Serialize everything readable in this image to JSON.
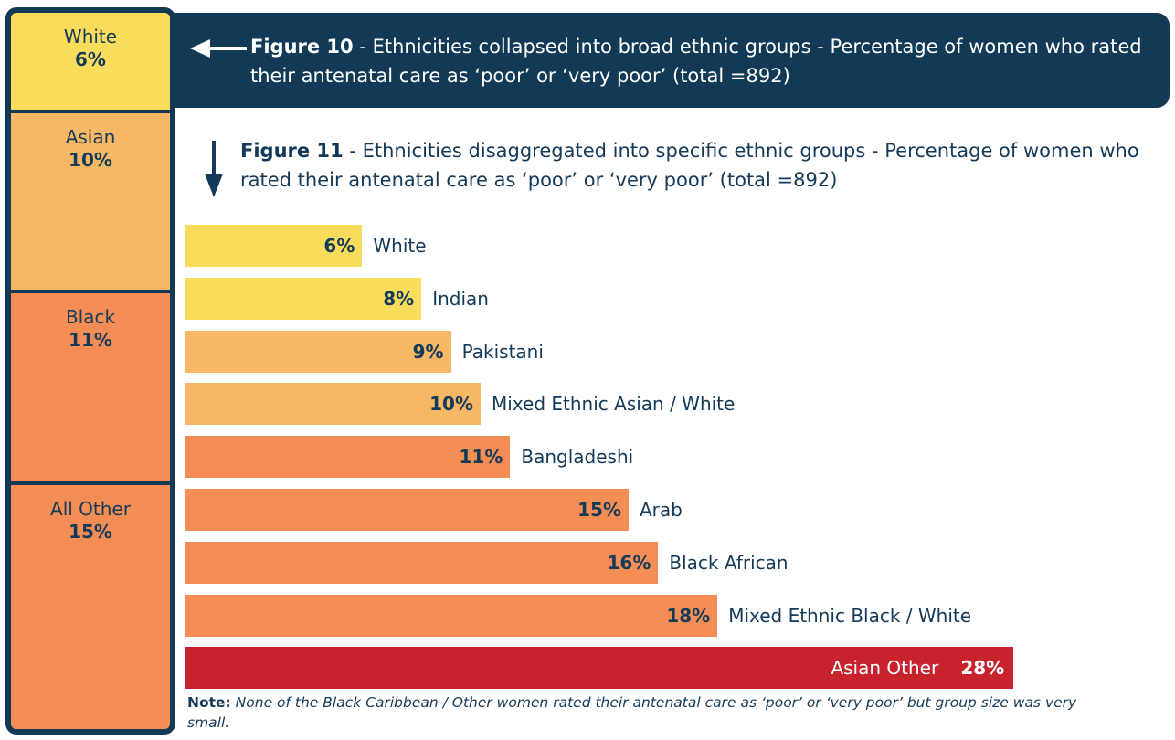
{
  "figure10": {
    "label": "Figure 10",
    "title": " - Ethnicities collapsed into broad ethnic groups - Percentage of women who rated their antenatal care as ‘poor’ or ‘very poor’ (total =892)",
    "groups": [
      {
        "name": "White",
        "value": "6%",
        "color": "#f9dc5c"
      },
      {
        "name": "Asian",
        "value": "10%",
        "color": "#f7b865"
      },
      {
        "name": "Black",
        "value": "11%",
        "color": "#f58e54"
      },
      {
        "name": "All Other",
        "value": "15%",
        "color": "#f58e54"
      }
    ]
  },
  "figure11": {
    "label": "Figure 11",
    "title": " - Ethnicities disaggregated into specific ethnic groups - Percentage of women who rated their antenatal care as ‘poor’ or ‘very poor’ (total =892)"
  },
  "chart_data": {
    "type": "bar",
    "orientation": "horizontal",
    "categories": [
      "White",
      "Indian",
      "Pakistani",
      "Mixed Ethnic Asian / White",
      "Bangladeshi",
      "Arab",
      "Black African",
      "Mixed Ethnic Black / White",
      "Asian Other"
    ],
    "values": [
      6,
      8,
      9,
      10,
      11,
      15,
      16,
      18,
      28
    ],
    "value_labels": [
      "6%",
      "8%",
      "9%",
      "10%",
      "11%",
      "15%",
      "16%",
      "18%",
      "28%"
    ],
    "colors": [
      "#f9dc5c",
      "#f9dc5c",
      "#f7b865",
      "#f7b865",
      "#f58e54",
      "#f58e54",
      "#f58e54",
      "#f58e54",
      "#c8232c"
    ],
    "unit": "%"
  },
  "note": {
    "label": "Note:",
    "text": " None of the Black Caribbean / Other women rated their antenatal care as ‘poor’ or ‘very poor’ but group size was very small."
  },
  "colors": {
    "navy": "#123a56",
    "yellow": "#f9dc5c",
    "light_orange": "#f7b865",
    "orange": "#f58e54",
    "red": "#c8232c"
  }
}
